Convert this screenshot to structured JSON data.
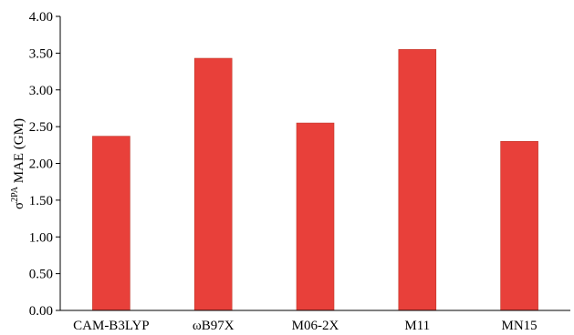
{
  "chart_data": {
    "type": "bar",
    "categories": [
      "CAM-B3LYP",
      "ωB97X",
      "M06-2X",
      "M11",
      "MN15"
    ],
    "values": [
      2.37,
      3.43,
      2.55,
      3.55,
      2.3
    ],
    "title": "",
    "xlabel": "",
    "ylabel_parts": {
      "symbol": "σ",
      "superscript": "2PA",
      "text": " MAE (GM)"
    },
    "ylim": [
      0,
      4
    ],
    "yticks": [
      "0.00",
      "0.50",
      "1.00",
      "1.50",
      "2.00",
      "2.50",
      "3.00",
      "3.50",
      "4.00"
    ],
    "ytick_values": [
      0,
      0.5,
      1,
      1.5,
      2,
      2.5,
      3,
      3.5,
      4
    ],
    "grid": false,
    "legend": "none",
    "bar_color": "#e8403a"
  }
}
